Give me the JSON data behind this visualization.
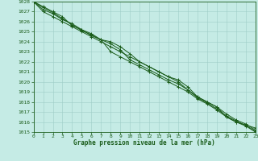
{
  "xlabel": "Graphe pression niveau de la mer (hPa)",
  "ylim": [
    1015,
    1028
  ],
  "xlim": [
    0,
    23
  ],
  "yticks": [
    1015,
    1016,
    1017,
    1018,
    1019,
    1020,
    1021,
    1022,
    1023,
    1024,
    1025,
    1026,
    1027,
    1028
  ],
  "xticks": [
    0,
    1,
    2,
    3,
    4,
    5,
    6,
    7,
    8,
    9,
    10,
    11,
    12,
    13,
    14,
    15,
    16,
    17,
    18,
    19,
    20,
    21,
    22,
    23
  ],
  "background_color": "#c5ebe5",
  "grid_color": "#9ecdc7",
  "line_color": "#1a5c1a",
  "tick_fontsize": 4.5,
  "xlabel_fontsize": 5.5,
  "series": [
    [
      1028.0,
      1027.0,
      1026.5,
      1026.0,
      1025.5,
      1025.0,
      1024.5,
      1024.0,
      1023.5,
      1023.0,
      1022.5,
      1022.0,
      1021.5,
      1021.0,
      1020.5,
      1020.0,
      1019.2,
      1018.5,
      1018.0,
      1017.5,
      1016.5,
      1016.0,
      1015.6,
      1015.0
    ],
    [
      1028.0,
      1027.2,
      1026.8,
      1026.2,
      1025.8,
      1025.2,
      1024.8,
      1024.2,
      1023.0,
      1022.5,
      1022.0,
      1021.5,
      1021.0,
      1020.5,
      1020.0,
      1019.5,
      1019.0,
      1018.3,
      1017.8,
      1017.2,
      1016.5,
      1016.0,
      1015.7,
      1015.4
    ],
    [
      1028.0,
      1027.5,
      1027.0,
      1026.5,
      1025.6,
      1025.2,
      1024.6,
      1024.2,
      1024.0,
      1023.5,
      1022.8,
      1022.0,
      1021.5,
      1021.0,
      1020.5,
      1020.2,
      1019.5,
      1018.5,
      1018.0,
      1017.5,
      1016.8,
      1016.2,
      1015.8,
      1015.2
    ],
    [
      1028.0,
      1027.4,
      1026.9,
      1026.3,
      1025.7,
      1025.1,
      1024.7,
      1024.2,
      1023.8,
      1023.2,
      1022.2,
      1021.7,
      1021.2,
      1020.7,
      1020.2,
      1019.8,
      1019.2,
      1018.4,
      1017.9,
      1017.3,
      1016.6,
      1016.1,
      1015.65,
      1015.1
    ]
  ]
}
